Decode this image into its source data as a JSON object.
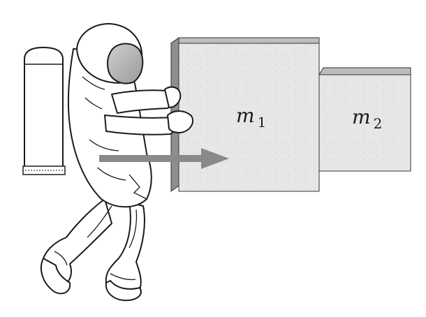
{
  "diagram": {
    "blocks": [
      {
        "id": "m1",
        "symbol": "m",
        "subscript": "1"
      },
      {
        "id": "m2",
        "symbol": "m",
        "subscript": "2"
      }
    ],
    "colors": {
      "block_face": "#e6e6e6",
      "block_top": "#bdbdbd",
      "block_side": "#8f8f8f",
      "arrow": "#8a8a8a",
      "outline": "#1a1a1a",
      "visor": "#b5b5b5"
    }
  }
}
